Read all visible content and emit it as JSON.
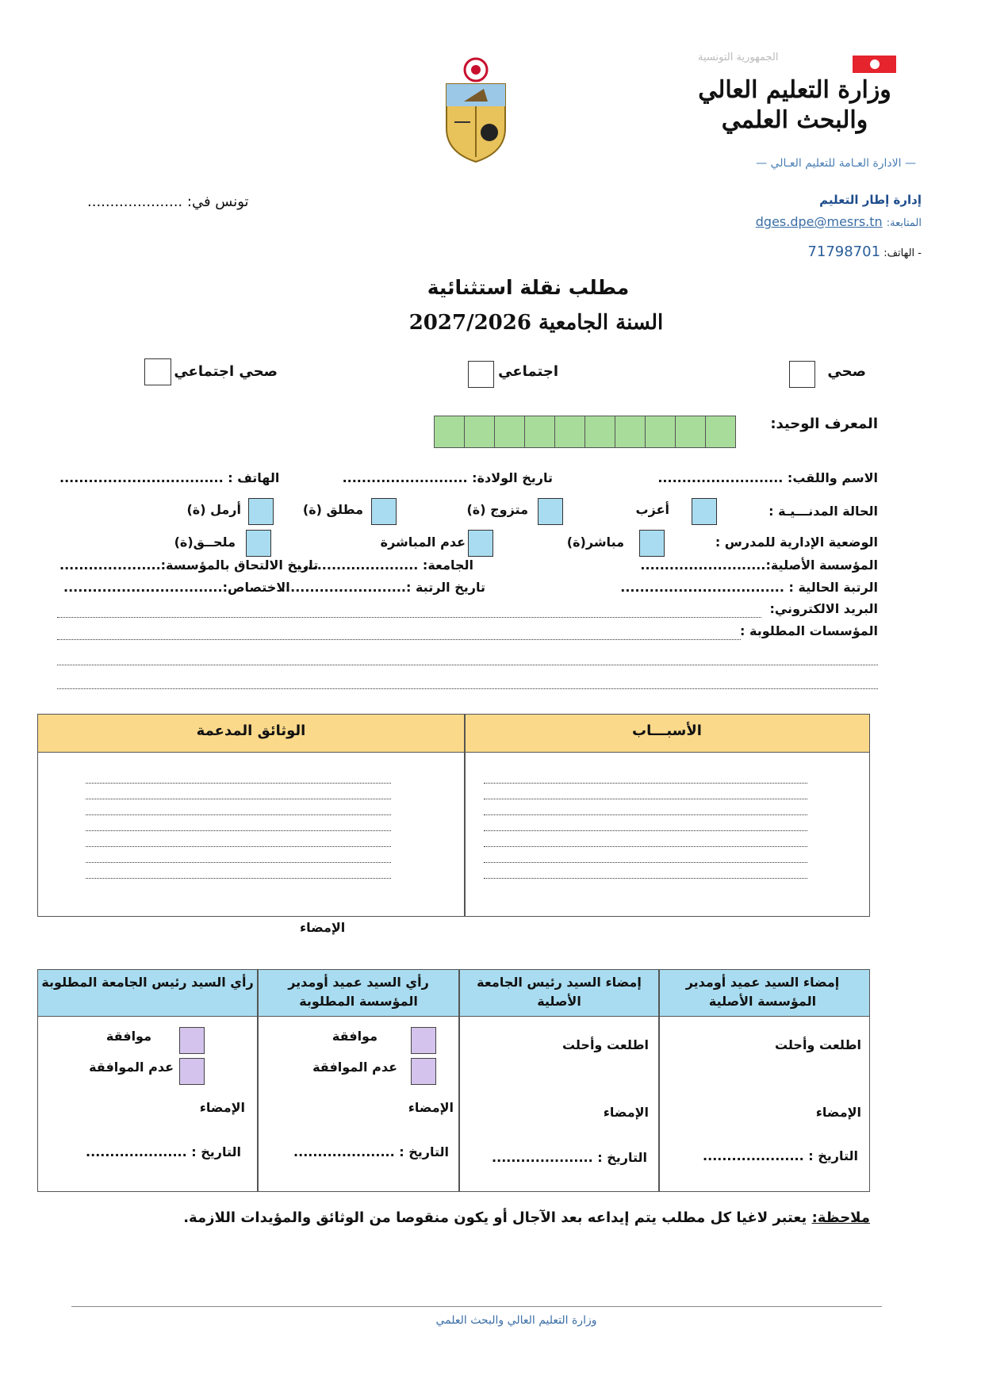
{
  "header": {
    "republic": "الجمهورية التونسية",
    "ministry_logo": "وزارة التعليم العالي والبحث العلمي",
    "directorate": "— الادارة العـامة للتعليم العـالي —",
    "department": "إدارة إطار التعليم",
    "follow_label": "المتابعة:",
    "email": "dges.dpe@mesrs.tn",
    "phone_label": "- الهاتف:",
    "phone": "71798701",
    "place_date": "تونس في: ....................."
  },
  "title": {
    "line1": "مطلب نقلة استثنائية",
    "line2": "السنة الجامعية 2027/2026"
  },
  "request_type": [
    {
      "label": "صحي"
    },
    {
      "label": "اجتماعي"
    },
    {
      "label": "صحي اجتماعي"
    }
  ],
  "unique_id": {
    "label": "المعرف الوحيد:",
    "cells": 10,
    "color": "#a8dc9a"
  },
  "fields": {
    "name": "الاسم واللقب: ..........................",
    "birth": "تاريخ الولادة: ..........................",
    "phone": "الهاتف : ..................................",
    "civil_label": "الحالة المدنـــيـة :",
    "civil_options": [
      "أعزب",
      "متزوج (ة)",
      "مطلق (ة)",
      "أرمل (ة)"
    ],
    "admin_label": "الوضعية الإدارية للمدرس :",
    "admin_options": [
      "مباشر(ة)",
      "عدم المباشرة",
      "ملحــق(ة)"
    ],
    "institution": "المؤسسة الأصلية:..........................",
    "university": "الجامعة: ..........................",
    "join_date": "تاريخ الالتحاق بالمؤسسة:.....................",
    "grade": "الرتبة الحالية : ..................................",
    "grade_date": "تاريخ الرتبة :..........................",
    "specialty": "الاختصاص:.................................",
    "email": "البريد الالكتروني:",
    "requested": "المؤسسات المطلوبة :"
  },
  "reasons_table": {
    "col_reasons": "الأسبـــاب",
    "col_documents": "الوثائق المدعمة",
    "header_color": "#fbd98a"
  },
  "signature_label": "الإمضاء",
  "approval_table": {
    "header_color": "#a9dcf0",
    "columns": [
      {
        "header": "إمضاء السيد عميد أومدير المؤسسة الأصلية",
        "text": "اطلعت وأحلت",
        "sign": "الإمضاء",
        "date": "التاريخ : ....................."
      },
      {
        "header": "إمضاء السيد رئيس الجامعة الأصلية",
        "text": "اطلعت وأحلت",
        "sign": "الإمضاء",
        "date": "التاريخ : ....................."
      },
      {
        "header": "رأي السيد عميد أومدير المؤسسة المطلوبة",
        "approve": "موافقة",
        "reject": "عدم الموافقة",
        "sign": "الإمضاء",
        "date": "التاريخ : ....................."
      },
      {
        "header": "رأي السيد رئيس الجامعة المطلوبة",
        "approve": "موافقة",
        "reject": "عدم الموافقة",
        "sign": "الإمضاء",
        "date": "التاريخ : ....................."
      }
    ]
  },
  "note": {
    "label": "ملاحظة:",
    "text": "يعتبر لاغيا كل مطلب يتم إيداعه بعد الآجال أو يكون منقوصا من الوثائق والمؤيدات اللازمة."
  },
  "footer": "وزارة التعليم العالي والبحث العلمي"
}
